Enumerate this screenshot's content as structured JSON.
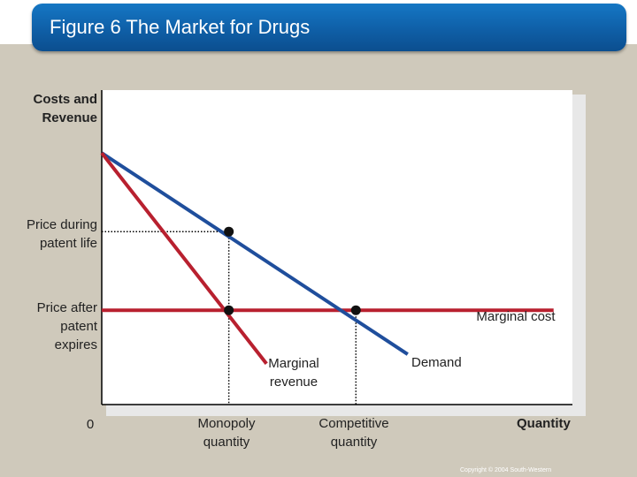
{
  "title": "Figure 6 The Market for Drugs",
  "copyright": "Copyright © 2004 South-Western",
  "chart_data": {
    "type": "line",
    "ylabel": "Costs and Revenue",
    "xlabel": "Quantity",
    "origin_label": "0",
    "y_ticks": [
      {
        "label": "Price during patent life",
        "value": 0.55
      },
      {
        "label": "Price after patent expires",
        "value": 0.3
      }
    ],
    "x_ticks": [
      {
        "label": "Monopoly quantity",
        "value": 0.27
      },
      {
        "label": "Competitive quantity",
        "value": 0.54
      }
    ],
    "xlim": [
      0,
      1
    ],
    "ylim": [
      0,
      1
    ],
    "series": [
      {
        "name": "Demand",
        "color": "#1f4e9c",
        "points": [
          [
            0,
            0.8
          ],
          [
            0.65,
            0.16
          ]
        ]
      },
      {
        "name": "Marginal revenue",
        "color": "#b8202f",
        "points": [
          [
            0,
            0.8
          ],
          [
            0.35,
            0.13
          ]
        ]
      },
      {
        "name": "Marginal cost",
        "color": "#b8202f",
        "points": [
          [
            0,
            0.3
          ],
          [
            0.96,
            0.3
          ]
        ]
      }
    ],
    "points": [
      {
        "x": 0.27,
        "y": 0.55
      },
      {
        "x": 0.27,
        "y": 0.3
      },
      {
        "x": 0.54,
        "y": 0.3
      }
    ]
  }
}
